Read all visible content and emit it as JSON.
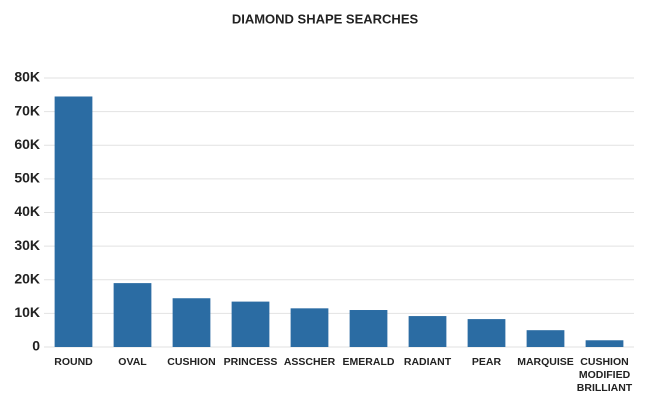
{
  "chart_data": {
    "type": "bar",
    "title": "DIAMOND SHAPE SEARCHES",
    "categories": [
      "ROUND",
      "OVAL",
      "CUSHION",
      "PRINCESS",
      "ASSCHER",
      "EMERALD",
      "RADIANT",
      "PEAR",
      "MARQUISE",
      "CUSHION MODIFIED BRILLIANT"
    ],
    "values": [
      74500,
      19000,
      14500,
      13500,
      11500,
      11000,
      9200,
      8300,
      5000,
      2000
    ],
    "color": "#2b6ca3",
    "ylim": [
      0,
      80000
    ],
    "yticks": [
      0,
      {
        "value": 10000,
        "label": "10K"
      },
      {
        "value": 20000,
        "label": "20K"
      },
      {
        "value": 30000,
        "label": "30K"
      },
      {
        "value": 40000,
        "label": "40K"
      },
      {
        "value": 50000,
        "label": "50K"
      },
      {
        "value": 60000,
        "label": "60K"
      },
      {
        "value": 70000,
        "label": "70K"
      },
      {
        "value": 80000,
        "label": "80K"
      }
    ],
    "grid": true
  }
}
